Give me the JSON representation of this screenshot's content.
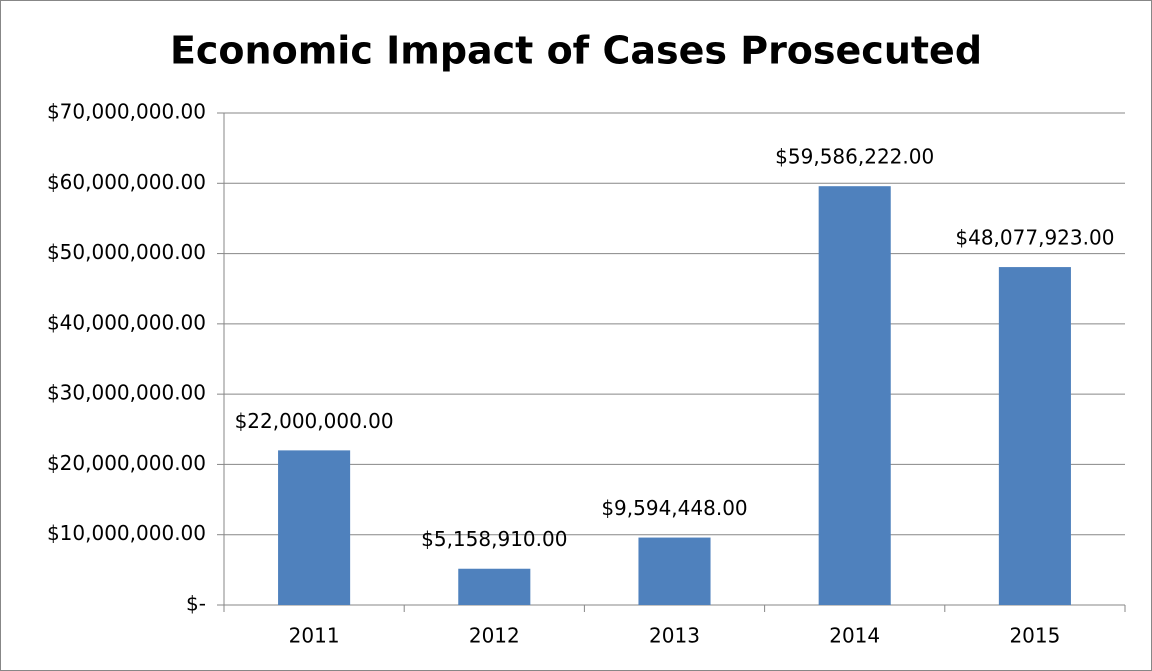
{
  "chart_data": {
    "type": "bar",
    "title": "Economic Impact of Cases Prosecuted",
    "categories": [
      "2011",
      "2012",
      "2013",
      "2014",
      "2015"
    ],
    "values": [
      22000000,
      5158910,
      9594448,
      59586222,
      48077923
    ],
    "value_labels": [
      "$22,000,000.00",
      "$5,158,910.00",
      "$9,594,448.00",
      "$59,586,222.00",
      "$48,077,923.00"
    ],
    "color": "#4f81bd",
    "ylim": [
      0,
      70000000
    ],
    "yticks": [
      {
        "value": 0,
        "label": "$-"
      },
      {
        "value": 10000000,
        "label": "$10,000,000.00"
      },
      {
        "value": 20000000,
        "label": "$20,000,000.00"
      },
      {
        "value": 30000000,
        "label": "$30,000,000.00"
      },
      {
        "value": 40000000,
        "label": "$40,000,000.00"
      },
      {
        "value": 50000000,
        "label": "$50,000,000.00"
      },
      {
        "value": 60000000,
        "label": "$60,000,000.00"
      },
      {
        "value": 70000000,
        "label": "$70,000,000.00"
      }
    ],
    "grid": true
  }
}
